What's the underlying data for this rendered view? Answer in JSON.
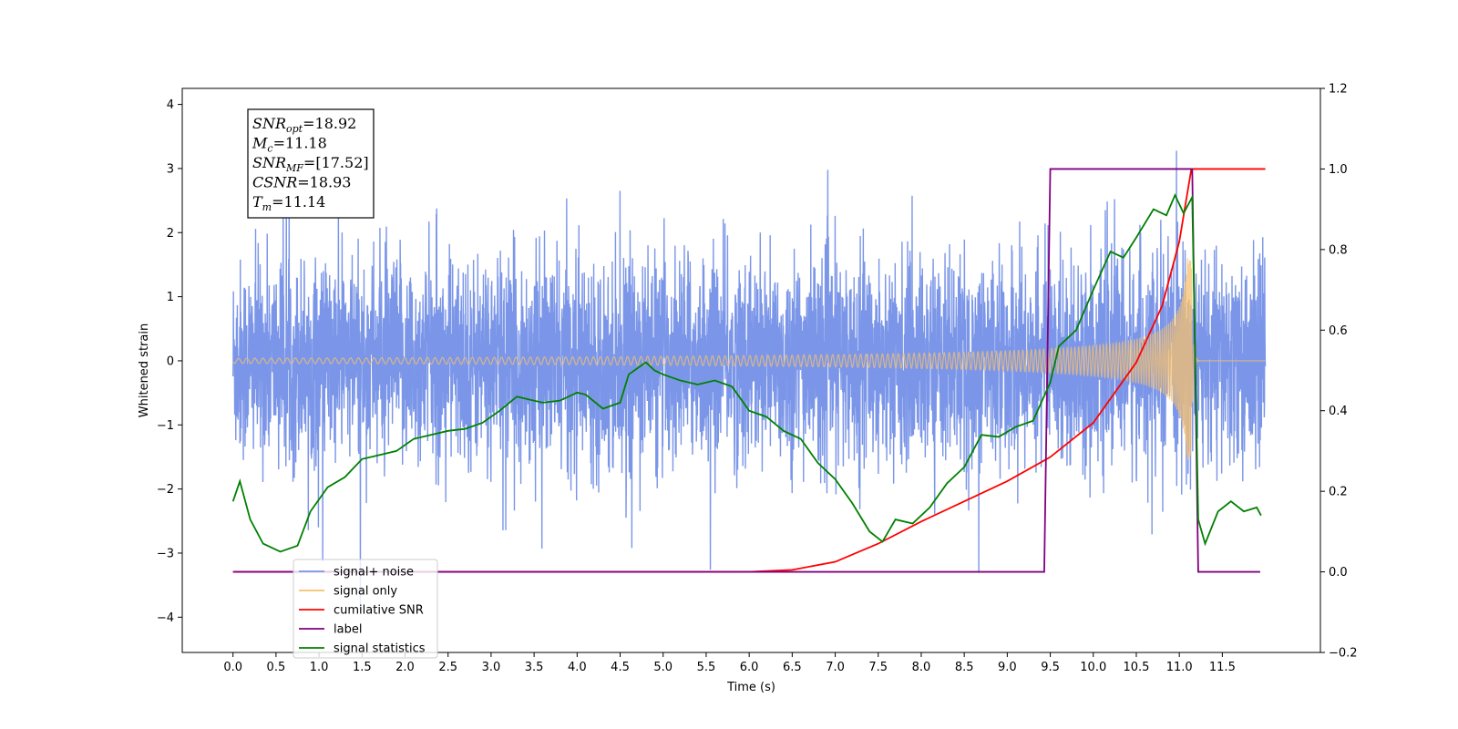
{
  "chart_data": {
    "type": "line",
    "xlabel": "Time (s)",
    "ylabel": "Whitened strain",
    "xlim": [
      -0.59,
      12.64
    ],
    "ylim": [
      -4.55,
      4.25
    ],
    "y2lim": [
      -0.2,
      1.2
    ],
    "grid": false,
    "legend_position": "bottom-left",
    "x_ticks": [
      "0.0",
      "0.5",
      "1.0",
      "1.5",
      "2.0",
      "2.5",
      "3.0",
      "3.5",
      "4.0",
      "4.5",
      "5.0",
      "5.5",
      "6.0",
      "6.5",
      "7.0",
      "7.5",
      "8.0",
      "8.5",
      "9.0",
      "9.5",
      "10.0",
      "10.5",
      "11.0",
      "11.5"
    ],
    "y_ticks": [
      "4",
      "3",
      "2",
      "1",
      "0",
      "−1",
      "−2",
      "−3",
      "−4"
    ],
    "y2_ticks": [
      "1.2",
      "1.0",
      "0.8",
      "0.6",
      "0.4",
      "0.2",
      "0.0",
      "−0.2"
    ],
    "annotations": {
      "snr_opt": {
        "base": "SNR",
        "sub": "opt",
        "value": "=18.92"
      },
      "mc": {
        "base": "M",
        "sub": "c",
        "value": "=11.18"
      },
      "snr_mf": {
        "base": "SNR",
        "sub": "MF",
        "value": "=[17.52]"
      },
      "csnr": {
        "base": "CSNR",
        "sub": "",
        "value": "=18.93"
      },
      "tm": {
        "base": "T",
        "sub": "m",
        "value": "=11.14"
      }
    },
    "series": [
      {
        "name": "signal+ noise",
        "color": "#7b96e8",
        "axis": "left",
        "description_values": {
          "noise_sigma": 0.95,
          "x_range": [
            0.0,
            12.0
          ],
          "peak_min": -4.1,
          "peak_max": 3.85
        }
      },
      {
        "name": "signal only",
        "color": "#f5c06f",
        "axis": "left",
        "chirp": {
          "t_merge": 11.14,
          "x_start": 0.0,
          "x_end": 12.0
        }
      },
      {
        "name": "cumilative SNR",
        "color": "#ff0000",
        "axis": "right",
        "x": [
          0.0,
          6.0,
          6.5,
          7.0,
          7.5,
          8.0,
          8.5,
          9.0,
          9.5,
          10.0,
          10.5,
          10.8,
          11.0,
          11.14,
          11.15,
          12.0
        ],
        "y": [
          0.0,
          0.0,
          0.005,
          0.025,
          0.07,
          0.125,
          0.175,
          0.225,
          0.285,
          0.37,
          0.52,
          0.66,
          0.82,
          1.0,
          1.0,
          1.0
        ]
      },
      {
        "name": "label",
        "color": "#800080",
        "axis": "right",
        "x": [
          0.0,
          9.43,
          9.5,
          11.15,
          11.22,
          11.94
        ],
        "y": [
          0.0,
          0.0,
          1.0,
          1.0,
          0.0,
          0.0
        ]
      },
      {
        "name": "signal statistics",
        "color": "#008000",
        "axis": "right",
        "x": [
          0.0,
          0.08,
          0.2,
          0.35,
          0.55,
          0.75,
          0.9,
          1.1,
          1.3,
          1.5,
          1.7,
          1.9,
          2.1,
          2.3,
          2.5,
          2.7,
          2.9,
          3.1,
          3.3,
          3.4,
          3.6,
          3.8,
          4.0,
          4.1,
          4.3,
          4.5,
          4.6,
          4.7,
          4.8,
          4.9,
          5.0,
          5.2,
          5.4,
          5.6,
          5.8,
          6.0,
          6.2,
          6.4,
          6.6,
          6.8,
          7.0,
          7.2,
          7.4,
          7.55,
          7.7,
          7.9,
          8.1,
          8.3,
          8.5,
          8.7,
          8.9,
          9.1,
          9.3,
          9.5,
          9.6,
          9.8,
          10.0,
          10.2,
          10.35,
          10.5,
          10.7,
          10.85,
          10.95,
          11.05,
          11.15,
          11.22,
          11.3,
          11.45,
          11.6,
          11.75,
          11.9,
          11.95
        ],
        "y": [
          0.175,
          0.225,
          0.13,
          0.07,
          0.05,
          0.065,
          0.15,
          0.21,
          0.235,
          0.28,
          0.29,
          0.3,
          0.33,
          0.34,
          0.35,
          0.355,
          0.37,
          0.4,
          0.435,
          0.43,
          0.42,
          0.425,
          0.445,
          0.44,
          0.405,
          0.42,
          0.49,
          0.505,
          0.52,
          0.5,
          0.49,
          0.475,
          0.465,
          0.475,
          0.46,
          0.4,
          0.385,
          0.35,
          0.33,
          0.27,
          0.23,
          0.17,
          0.1,
          0.075,
          0.13,
          0.12,
          0.16,
          0.22,
          0.26,
          0.34,
          0.335,
          0.36,
          0.375,
          0.47,
          0.56,
          0.6,
          0.7,
          0.795,
          0.78,
          0.83,
          0.9,
          0.885,
          0.935,
          0.89,
          0.93,
          0.13,
          0.07,
          0.15,
          0.175,
          0.15,
          0.16,
          0.14
        ]
      }
    ]
  }
}
